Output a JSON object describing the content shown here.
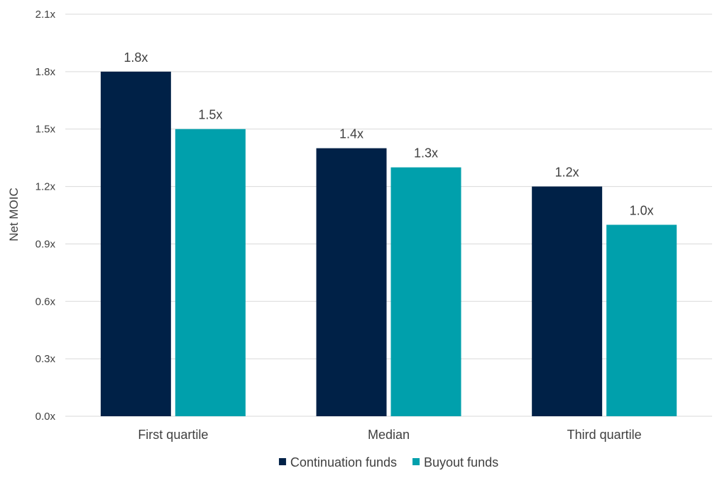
{
  "chart_data": {
    "type": "bar",
    "title": "",
    "xlabel": "",
    "ylabel": "Net MOIC",
    "ylim": [
      0,
      2.1
    ],
    "yticks": [
      "0.0x",
      "0.3x",
      "0.6x",
      "0.9x",
      "1.2x",
      "1.5x",
      "1.8x",
      "2.1x"
    ],
    "ytick_values": [
      0,
      0.3,
      0.6,
      0.9,
      1.2,
      1.5,
      1.8,
      2.1
    ],
    "grid": true,
    "legend_position": "bottom",
    "categories": [
      "First quartile",
      "Median",
      "Third quartile"
    ],
    "series": [
      {
        "name": "Continuation funds",
        "color": "#002147",
        "values": [
          1.8,
          1.4,
          1.2
        ],
        "labels": [
          "1.8x",
          "1.4x",
          "1.2x"
        ]
      },
      {
        "name": "Buyout funds",
        "color": "#00A0AC",
        "values": [
          1.5,
          1.3,
          1.0
        ],
        "labels": [
          "1.5x",
          "1.3x",
          "1.0x"
        ]
      }
    ]
  }
}
